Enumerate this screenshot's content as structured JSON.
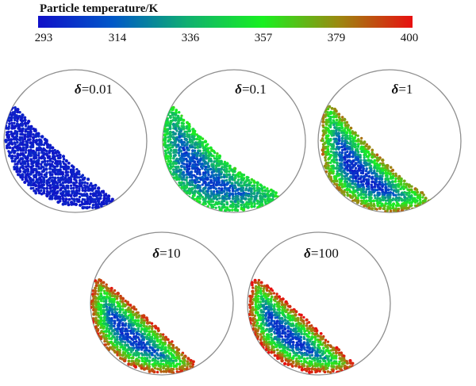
{
  "colorbar": {
    "title": "Particle temperature/K",
    "ticks": [
      "293",
      "314",
      "336",
      "357",
      "379",
      "400"
    ],
    "colors": [
      "#1010c8",
      "#0058c8",
      "#10b070",
      "#18f020",
      "#9a8a10",
      "#e81010"
    ]
  },
  "panels": [
    {
      "symbol": "δ",
      "value": "=0.01",
      "mix": 0.05
    },
    {
      "symbol": "δ",
      "value": "=0.1",
      "mix": 0.35
    },
    {
      "symbol": "δ",
      "value": "=1",
      "mix": 0.62
    },
    {
      "symbol": "δ",
      "value": "=10",
      "mix": 0.72
    },
    {
      "symbol": "δ",
      "value": "=100",
      "mix": 0.75
    }
  ]
}
